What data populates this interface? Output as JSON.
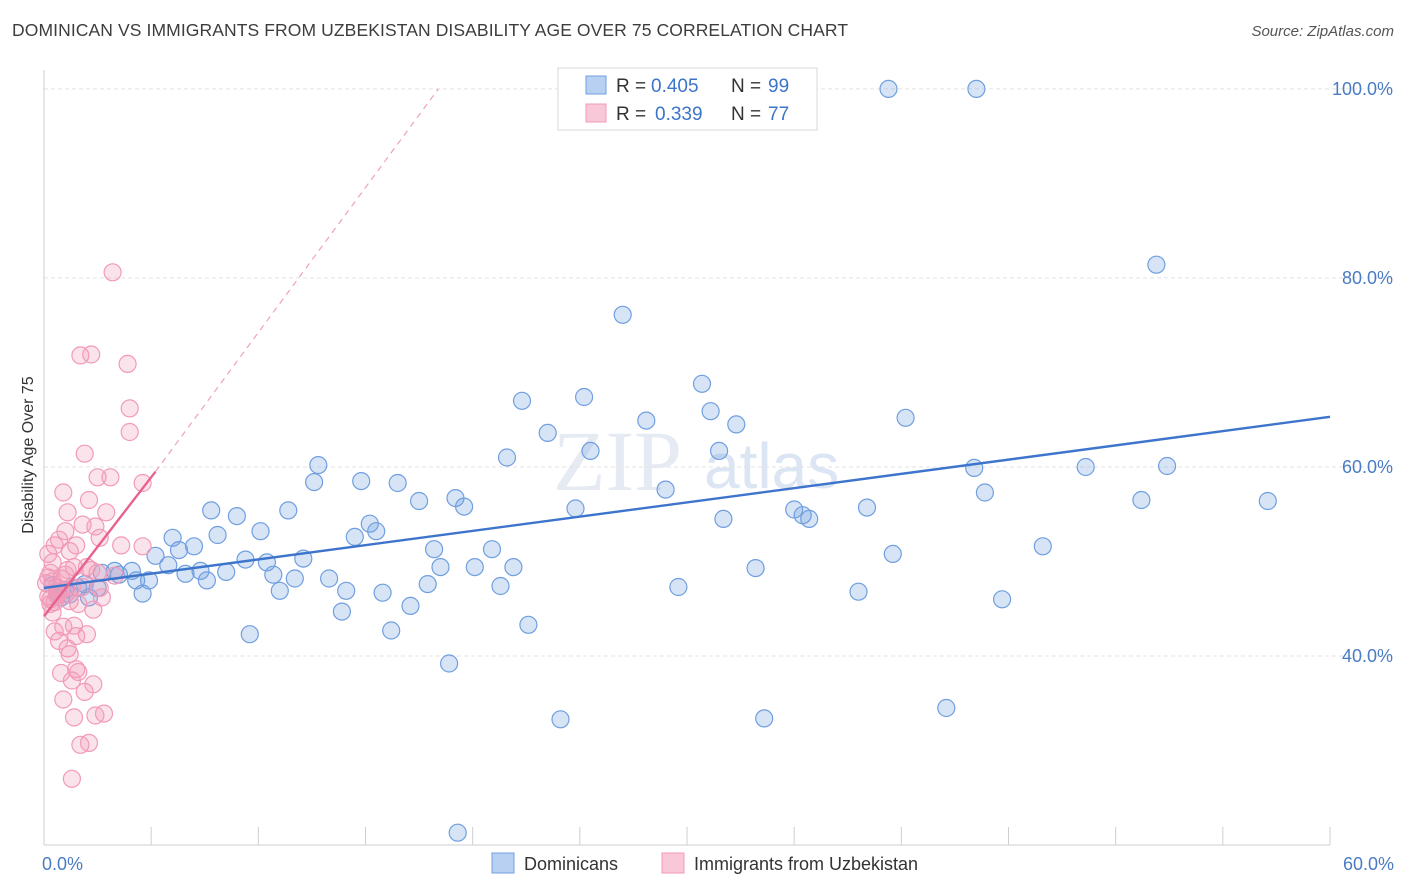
{
  "header": {
    "title": "DOMINICAN VS IMMIGRANTS FROM UZBEKISTAN DISABILITY AGE OVER 75 CORRELATION CHART",
    "source": "Source: ZipAtlas.com"
  },
  "watermark": {
    "zip": "ZIP",
    "atlas": "atlas"
  },
  "chart_data": {
    "type": "scatter",
    "title": "DOMINICAN VS IMMIGRANTS FROM UZBEKISTAN DISABILITY AGE OVER 75 CORRELATION CHART",
    "ylabel": "Disability Age Over 75",
    "xlabel": "",
    "xlim": [
      0,
      60
    ],
    "ylim": [
      20,
      102
    ],
    "x_ticks": [
      {
        "value": 0,
        "label": "0.0%"
      },
      {
        "value": 60,
        "label": "60.0%"
      }
    ],
    "y_ticks": [
      {
        "value": 40,
        "label": "40.0%"
      },
      {
        "value": 60,
        "label": "60.0%"
      },
      {
        "value": 80,
        "label": "80.0%"
      },
      {
        "value": 100,
        "label": "100.0%"
      }
    ],
    "grid": true,
    "legend_position": "top-center",
    "colors": {
      "dominicans": "#6f9fe0",
      "uzbekistan": "#f29ab8",
      "dominicans_line": "#3d74cc",
      "uzbekistan_line": "#e8628f"
    },
    "legend": [
      {
        "r_label": "R =",
        "r_value": "0.405",
        "n_label": "N =",
        "n_value": "99"
      },
      {
        "r_label": "R =",
        "r_value": "0.339",
        "n_label": "N =",
        "n_value": "77"
      }
    ],
    "series": [
      {
        "name": "Dominicans",
        "trend": {
          "x0": 0,
          "y0": 47.2,
          "x1": 60,
          "y1": 65.3
        },
        "points": [
          [
            0.4,
            47.5
          ],
          [
            0.6,
            46.8
          ],
          [
            0.8,
            46.2
          ],
          [
            1.0,
            47.0
          ],
          [
            1.2,
            46.5
          ],
          [
            1.6,
            47.2
          ],
          [
            1.9,
            47.6
          ],
          [
            2.1,
            46.2
          ],
          [
            2.5,
            47.2
          ],
          [
            2.7,
            48.8
          ],
          [
            3.3,
            49.0
          ],
          [
            3.5,
            48.6
          ],
          [
            4.1,
            49.0
          ],
          [
            4.3,
            48.0
          ],
          [
            4.6,
            46.6
          ],
          [
            4.9,
            48.0
          ],
          [
            5.2,
            50.6
          ],
          [
            5.8,
            49.6
          ],
          [
            6.0,
            52.5
          ],
          [
            6.3,
            51.2
          ],
          [
            6.6,
            48.7
          ],
          [
            7.0,
            51.6
          ],
          [
            7.3,
            49.0
          ],
          [
            7.6,
            48.0
          ],
          [
            7.8,
            55.4
          ],
          [
            8.1,
            52.8
          ],
          [
            8.5,
            48.9
          ],
          [
            9.0,
            54.8
          ],
          [
            9.4,
            50.2
          ],
          [
            9.6,
            42.3
          ],
          [
            10.1,
            53.2
          ],
          [
            10.4,
            49.9
          ],
          [
            10.7,
            48.6
          ],
          [
            11.0,
            46.9
          ],
          [
            11.4,
            55.4
          ],
          [
            11.7,
            48.2
          ],
          [
            12.1,
            50.3
          ],
          [
            12.6,
            58.4
          ],
          [
            12.8,
            60.2
          ],
          [
            13.3,
            48.2
          ],
          [
            13.9,
            44.7
          ],
          [
            14.1,
            46.9
          ],
          [
            14.5,
            52.6
          ],
          [
            14.8,
            58.5
          ],
          [
            15.2,
            54.0
          ],
          [
            15.5,
            53.2
          ],
          [
            15.8,
            46.7
          ],
          [
            16.2,
            42.7
          ],
          [
            16.5,
            58.3
          ],
          [
            17.1,
            45.3
          ],
          [
            17.5,
            56.4
          ],
          [
            17.9,
            47.6
          ],
          [
            18.2,
            51.3
          ],
          [
            18.5,
            49.4
          ],
          [
            18.9,
            39.2
          ],
          [
            19.2,
            56.7
          ],
          [
            19.6,
            55.8
          ],
          [
            20.1,
            49.4
          ],
          [
            20.9,
            51.3
          ],
          [
            21.3,
            47.4
          ],
          [
            21.6,
            61.0
          ],
          [
            21.9,
            49.4
          ],
          [
            22.3,
            67.0
          ],
          [
            22.6,
            43.3
          ],
          [
            23.5,
            63.6
          ],
          [
            24.1,
            33.3
          ],
          [
            24.8,
            55.6
          ],
          [
            25.2,
            67.4
          ],
          [
            25.5,
            61.7
          ],
          [
            27.0,
            76.1
          ],
          [
            28.1,
            64.9
          ],
          [
            29.0,
            57.6
          ],
          [
            29.6,
            47.3
          ],
          [
            30.7,
            68.8
          ],
          [
            31.1,
            65.9
          ],
          [
            31.5,
            61.7
          ],
          [
            31.7,
            54.5
          ],
          [
            32.3,
            64.5
          ],
          [
            33.2,
            49.3
          ],
          [
            33.6,
            33.4
          ],
          [
            35.0,
            55.5
          ],
          [
            35.4,
            54.9
          ],
          [
            35.7,
            54.5
          ],
          [
            38.0,
            46.8
          ],
          [
            38.4,
            55.7
          ],
          [
            39.6,
            50.8
          ],
          [
            40.2,
            65.2
          ],
          [
            42.1,
            34.5
          ],
          [
            43.4,
            59.9
          ],
          [
            43.9,
            57.3
          ],
          [
            44.7,
            46.0
          ],
          [
            46.6,
            51.6
          ],
          [
            48.6,
            60.0
          ],
          [
            51.2,
            56.5
          ],
          [
            51.9,
            81.4
          ],
          [
            52.4,
            60.1
          ],
          [
            57.1,
            56.4
          ],
          [
            19.3,
            21.3
          ],
          [
            39.4,
            100.0
          ],
          [
            43.5,
            100.0
          ]
        ]
      },
      {
        "name": "Immigrants from Uzbekistan",
        "trend": {
          "x0": 0,
          "y0": 44.2,
          "x1": 5.2,
          "y1": 59.5,
          "ext_x": 18.4,
          "ext_y": 100.0
        },
        "points": [
          [
            0.1,
            47.7
          ],
          [
            0.2,
            46.3
          ],
          [
            0.3,
            48.8
          ],
          [
            0.3,
            45.5
          ],
          [
            0.4,
            49.9
          ],
          [
            0.4,
            44.6
          ],
          [
            0.5,
            51.7
          ],
          [
            0.5,
            42.6
          ],
          [
            0.6,
            47.3
          ],
          [
            0.6,
            46.5
          ],
          [
            0.7,
            52.3
          ],
          [
            0.7,
            41.6
          ],
          [
            0.8,
            48.2
          ],
          [
            0.8,
            38.2
          ],
          [
            0.9,
            57.3
          ],
          [
            0.9,
            35.4
          ],
          [
            1.0,
            53.2
          ],
          [
            1.0,
            46.5
          ],
          [
            1.1,
            55.2
          ],
          [
            1.1,
            49.1
          ],
          [
            1.2,
            51.1
          ],
          [
            1.2,
            40.2
          ],
          [
            1.3,
            47.3
          ],
          [
            1.3,
            37.4
          ],
          [
            1.4,
            49.4
          ],
          [
            1.4,
            33.5
          ],
          [
            1.5,
            51.7
          ],
          [
            1.5,
            42.1
          ],
          [
            1.6,
            45.5
          ],
          [
            1.6,
            38.3
          ],
          [
            1.7,
            71.8
          ],
          [
            1.7,
            30.6
          ],
          [
            1.8,
            53.9
          ],
          [
            1.8,
            47.3
          ],
          [
            1.9,
            61.4
          ],
          [
            1.9,
            36.2
          ],
          [
            2.0,
            49.4
          ],
          [
            2.0,
            42.3
          ],
          [
            2.1,
            56.5
          ],
          [
            2.1,
            30.8
          ],
          [
            2.2,
            71.9
          ],
          [
            2.2,
            49.1
          ],
          [
            2.3,
            44.9
          ],
          [
            2.3,
            37.0
          ],
          [
            2.4,
            53.7
          ],
          [
            2.4,
            33.7
          ],
          [
            2.5,
            58.9
          ],
          [
            2.5,
            48.8
          ],
          [
            2.6,
            52.5
          ],
          [
            2.6,
            47.2
          ],
          [
            2.7,
            46.2
          ],
          [
            2.8,
            33.9
          ],
          [
            2.9,
            55.2
          ],
          [
            3.1,
            58.9
          ],
          [
            3.2,
            80.6
          ],
          [
            3.3,
            48.5
          ],
          [
            3.6,
            51.7
          ],
          [
            3.9,
            70.9
          ],
          [
            4.0,
            63.7
          ],
          [
            4.0,
            66.2
          ],
          [
            4.6,
            51.6
          ],
          [
            4.6,
            58.3
          ],
          [
            0.2,
            50.8
          ],
          [
            0.4,
            47.9
          ],
          [
            0.6,
            46.4
          ],
          [
            0.8,
            46.9
          ],
          [
            1.0,
            48.6
          ],
          [
            1.2,
            45.8
          ],
          [
            1.4,
            43.2
          ],
          [
            0.3,
            46.0
          ],
          [
            0.5,
            45.7
          ],
          [
            1.1,
            40.8
          ],
          [
            1.5,
            38.6
          ],
          [
            0.9,
            43.1
          ],
          [
            1.3,
            27.0
          ],
          [
            0.7,
            46.8
          ],
          [
            0.2,
            48.3
          ]
        ]
      }
    ]
  },
  "bottom_legend": [
    {
      "label": "Dominicans"
    },
    {
      "label": "Immigrants from Uzbekistan"
    }
  ]
}
